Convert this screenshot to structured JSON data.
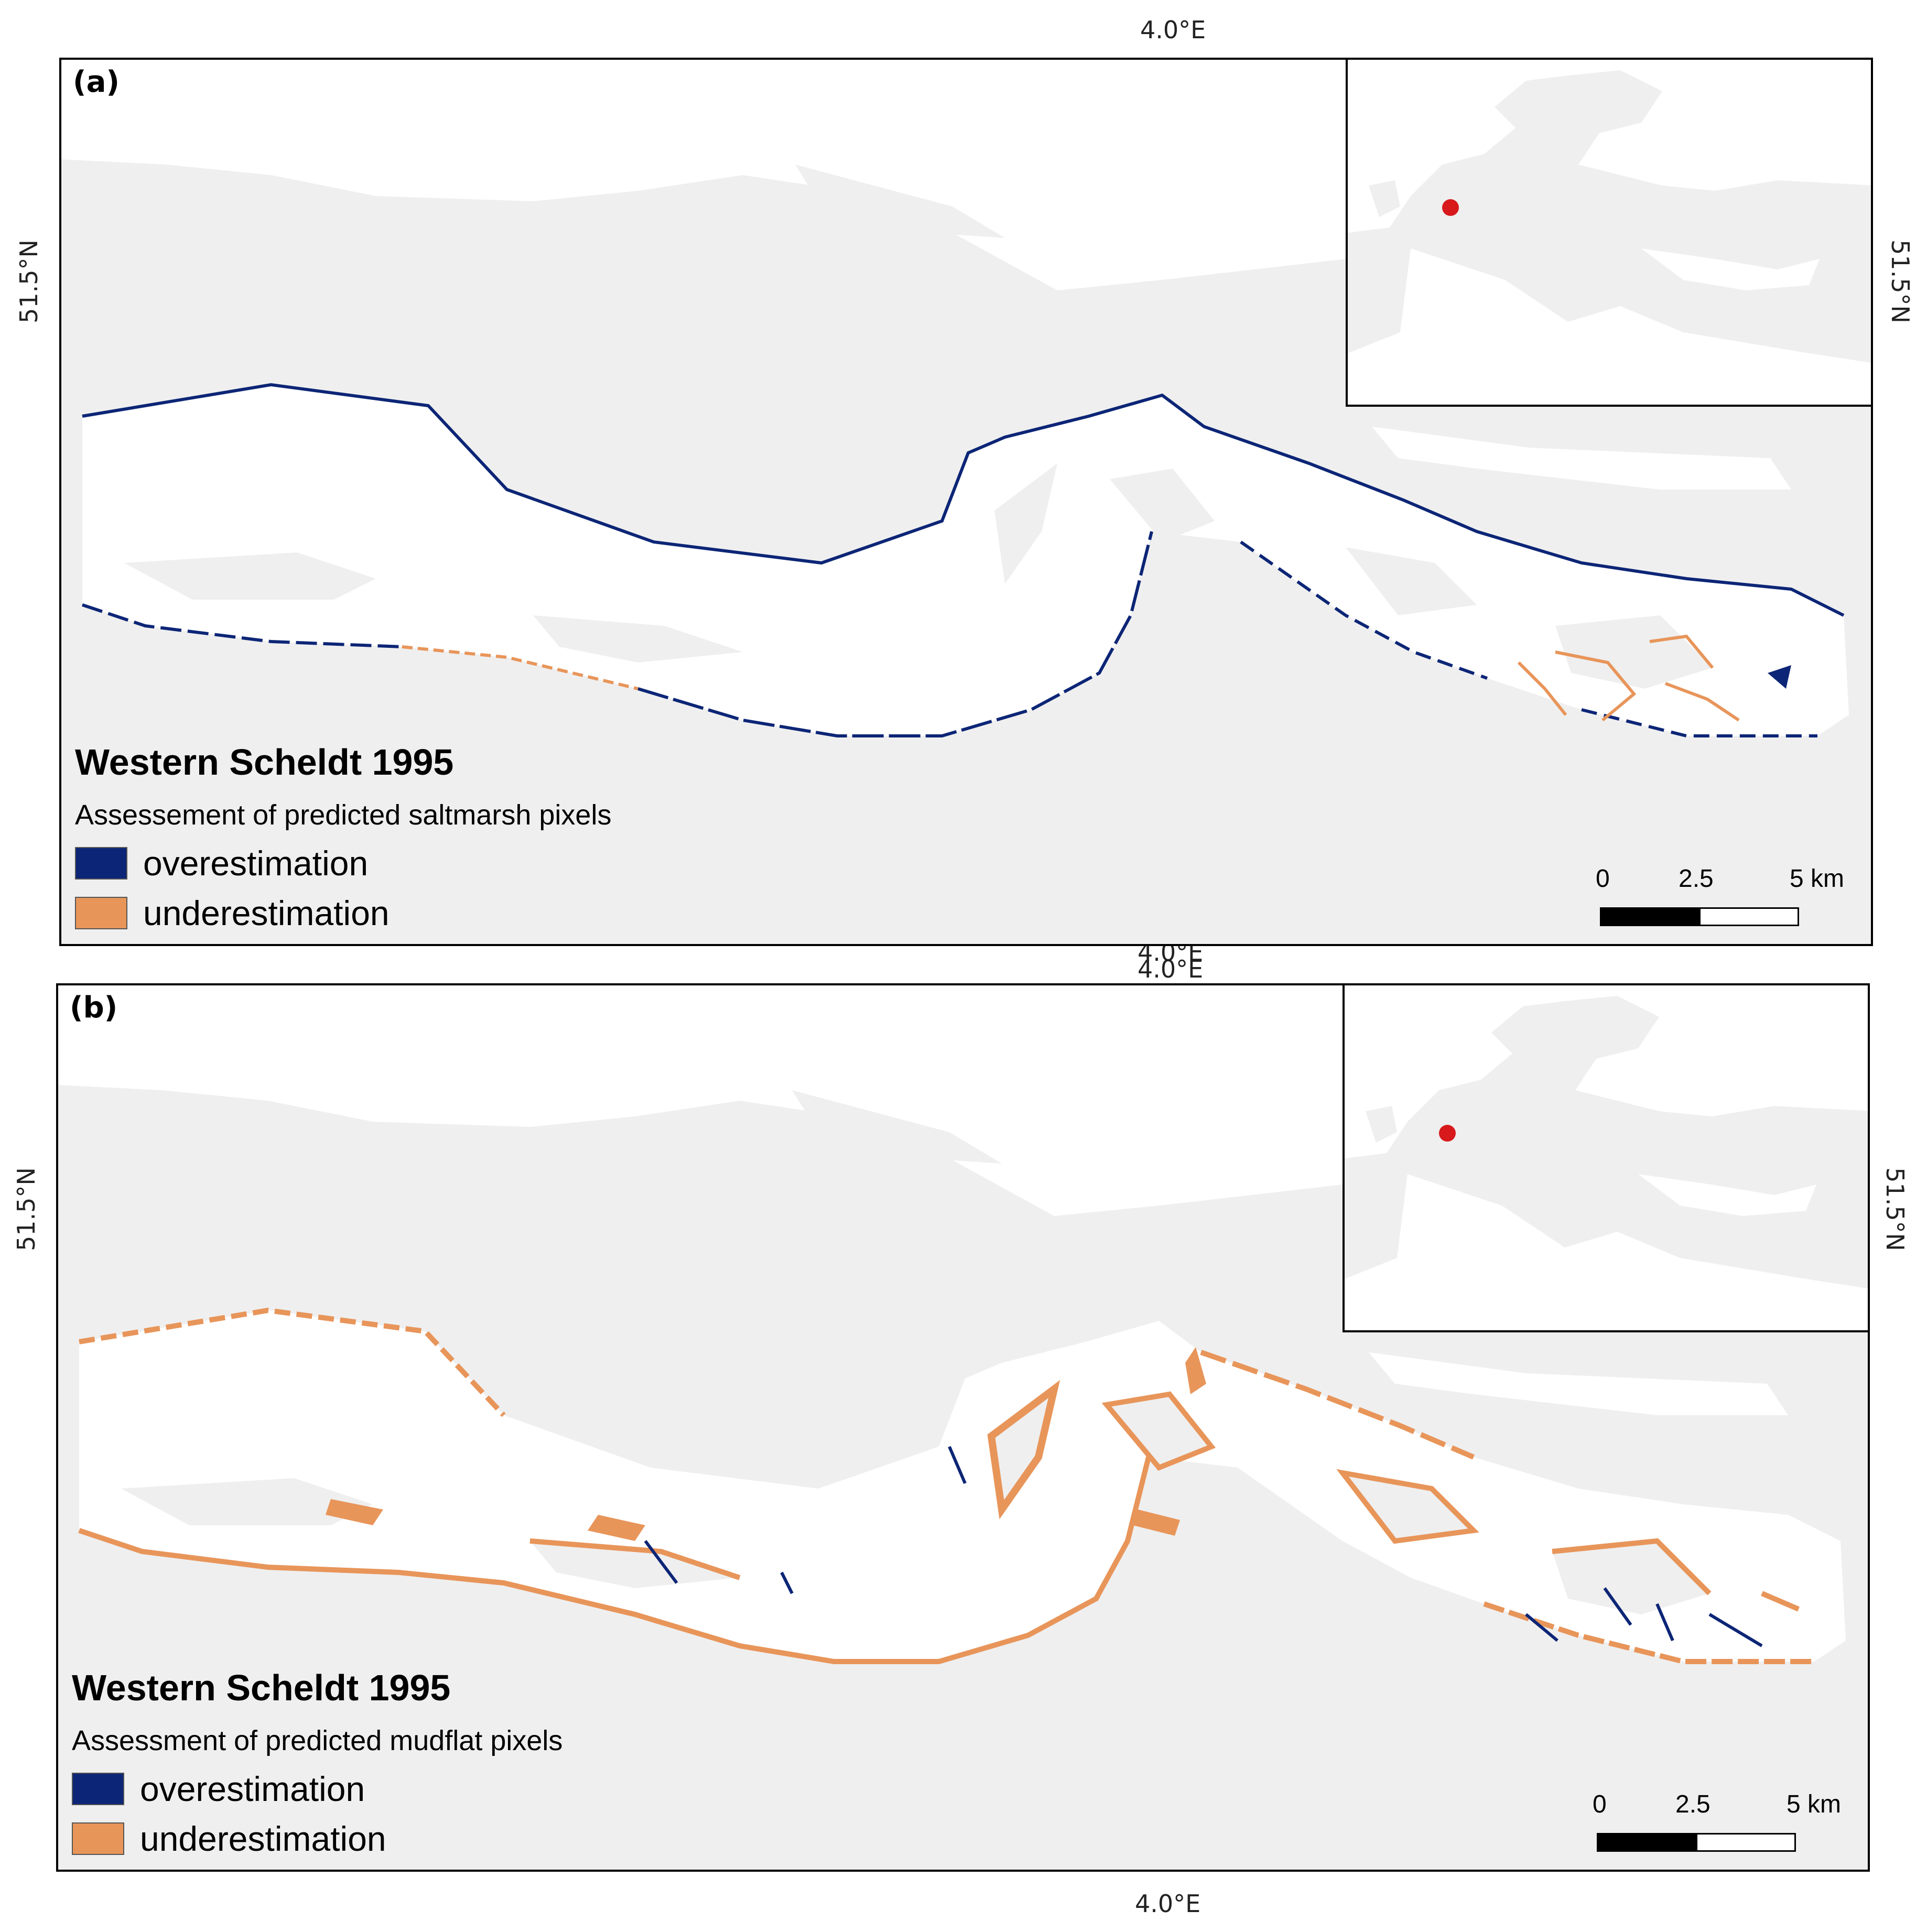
{
  "colors": {
    "background": "#efefef",
    "water": "#ffffff",
    "overestimation": "#0c2576",
    "underestimation": "#e8955a",
    "location_marker": "#d7191c"
  },
  "coordinates": {
    "lon_label": "4.0°E",
    "lat_label": "51.5°N"
  },
  "panels": [
    {
      "label": "(a)",
      "title": "Western Scheldt 1995",
      "subtitle": "Assessement of predicted saltmarsh pixels",
      "legend": [
        {
          "label": "overestimation",
          "color": "#0c2576"
        },
        {
          "label": "underestimation",
          "color": "#e8955a"
        }
      ],
      "scale": {
        "ticks": [
          "0",
          "2.5",
          "5 km"
        ]
      }
    },
    {
      "label": "(b)",
      "title": "Western Scheldt 1995",
      "subtitle": "Assessment of predicted mudflat pixels",
      "legend": [
        {
          "label": "overestimation",
          "color": "#0c2576"
        },
        {
          "label": "underestimation",
          "color": "#e8955a"
        }
      ],
      "scale": {
        "ticks": [
          "0",
          "2.5",
          "5 km"
        ]
      }
    }
  ]
}
